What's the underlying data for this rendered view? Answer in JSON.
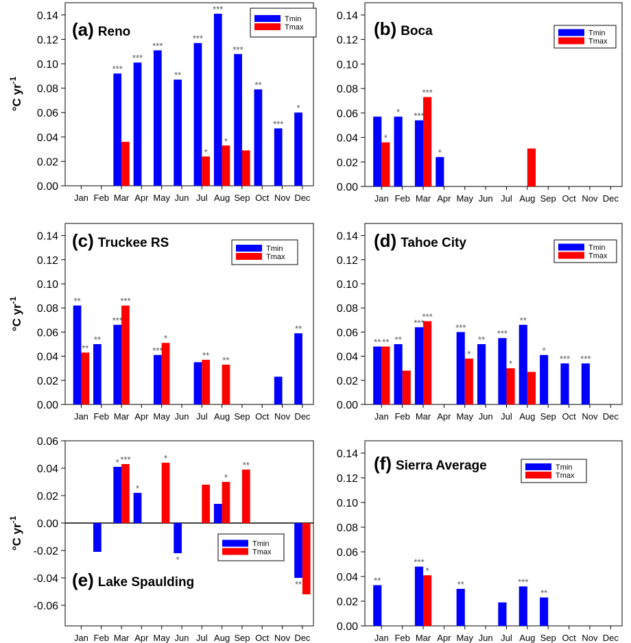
{
  "ylabel": {
    "prefix": "°C yr",
    "superscript": "-1"
  },
  "categories": [
    "Jan",
    "Feb",
    "Mar",
    "Apr",
    "May",
    "Jun",
    "Jul",
    "Aug",
    "Sep",
    "Oct",
    "Nov",
    "Dec"
  ],
  "legend": {
    "tmin": "Tmin",
    "tmax": "Tmax"
  },
  "colors": {
    "tmin": "#0000ff",
    "tmax": "#ff0000"
  },
  "chart_data": [
    {
      "type": "bar",
      "letter": "(a)",
      "name": "Reno",
      "ylim": [
        0,
        0.15
      ],
      "yticks": [
        "0.00",
        "0.02",
        "0.04",
        "0.06",
        "0.08",
        "0.10",
        "0.12",
        "0.14"
      ],
      "legend_placement": "top-right",
      "series": [
        {
          "name": "Tmin",
          "values": [
            null,
            null,
            0.092,
            0.101,
            0.111,
            0.087,
            0.117,
            0.141,
            0.108,
            0.079,
            0.047,
            0.06
          ],
          "sig": [
            "",
            "",
            "***",
            "***",
            "***",
            "**",
            "***",
            "***",
            "***",
            "**",
            "***",
            "*"
          ]
        },
        {
          "name": "Tmax",
          "values": [
            null,
            null,
            0.036,
            null,
            null,
            null,
            0.024,
            0.033,
            0.029,
            null,
            null,
            null
          ],
          "sig": [
            "",
            "",
            "",
            "",
            "",
            "",
            "*",
            "*",
            "",
            "",
            "",
            ""
          ]
        }
      ]
    },
    {
      "type": "bar",
      "letter": "(b)",
      "name": "Boca",
      "ylim": [
        0,
        0.15
      ],
      "yticks": [
        "0.00",
        "0.02",
        "0.04",
        "0.06",
        "0.08",
        "0.10",
        "0.12",
        "0.14"
      ],
      "legend_placement": "top-right",
      "series": [
        {
          "name": "Tmin",
          "values": [
            0.057,
            0.057,
            0.054,
            0.024,
            null,
            null,
            null,
            null,
            null,
            null,
            null,
            null
          ],
          "sig": [
            "",
            "*",
            "***",
            "*",
            "",
            "",
            "",
            "",
            "",
            "",
            "",
            ""
          ]
        },
        {
          "name": "Tmax",
          "values": [
            0.036,
            null,
            0.073,
            null,
            null,
            null,
            null,
            0.031,
            null,
            null,
            null,
            null
          ],
          "sig": [
            "*",
            "",
            "***",
            "",
            "",
            "",
            "",
            "",
            "",
            "",
            "",
            ""
          ]
        }
      ]
    },
    {
      "type": "bar",
      "letter": "(c)",
      "name": "Truckee RS",
      "ylim": [
        0,
        0.15
      ],
      "yticks": [
        "0.00",
        "0.02",
        "0.04",
        "0.06",
        "0.08",
        "0.10",
        "0.12",
        "0.14"
      ],
      "legend_placement": "top-right",
      "series": [
        {
          "name": "Tmin",
          "values": [
            0.082,
            0.05,
            0.066,
            null,
            0.041,
            null,
            0.035,
            null,
            null,
            null,
            0.023,
            0.059
          ],
          "sig": [
            "**",
            "**",
            "***",
            "",
            "***",
            "",
            "",
            "",
            "",
            "",
            "",
            "**"
          ]
        },
        {
          "name": "Tmax",
          "values": [
            0.043,
            null,
            0.082,
            null,
            0.051,
            null,
            0.037,
            0.033,
            null,
            null,
            null,
            null
          ],
          "sig": [
            "**",
            "",
            "***",
            "",
            "*",
            "",
            "**",
            "**",
            "",
            "",
            "",
            ""
          ]
        }
      ]
    },
    {
      "type": "bar",
      "letter": "(d)",
      "name": "Tahoe City",
      "ylim": [
        0,
        0.15
      ],
      "yticks": [
        "0.00",
        "0.02",
        "0.04",
        "0.06",
        "0.08",
        "0.10",
        "0.12",
        "0.14"
      ],
      "legend_placement": "top-right",
      "series": [
        {
          "name": "Tmin",
          "values": [
            0.048,
            0.05,
            0.064,
            null,
            0.06,
            0.05,
            0.055,
            0.066,
            0.041,
            0.034,
            0.034,
            null
          ],
          "sig": [
            "**",
            "**",
            "***",
            "",
            "***",
            "**",
            "***",
            "**",
            "*",
            "***",
            "***",
            ""
          ]
        },
        {
          "name": "Tmax",
          "values": [
            0.048,
            0.028,
            0.069,
            null,
            0.038,
            null,
            0.03,
            0.027,
            null,
            null,
            null,
            null
          ],
          "sig": [
            "**",
            "",
            "***",
            "",
            "*",
            "",
            "*",
            "",
            "",
            "",
            "",
            ""
          ]
        }
      ]
    },
    {
      "type": "bar",
      "letter": "(e)",
      "name": "Lake Spaulding",
      "ylim": [
        -0.075,
        0.06
      ],
      "yticks": [
        "-0.06",
        "-0.04",
        "-0.02",
        "0.00",
        "0.02",
        "0.04",
        "0.06"
      ],
      "legend_placement": "center-right",
      "series": [
        {
          "name": "Tmin",
          "values": [
            null,
            -0.021,
            0.041,
            0.022,
            null,
            -0.022,
            null,
            0.014,
            null,
            null,
            null,
            -0.04
          ],
          "sig": [
            "",
            "",
            "*",
            "*",
            "",
            "*",
            "",
            "",
            "",
            "",
            "",
            "**"
          ]
        },
        {
          "name": "Tmax",
          "values": [
            null,
            null,
            0.043,
            null,
            0.044,
            null,
            0.028,
            0.03,
            0.039,
            null,
            null,
            -0.052
          ],
          "sig": [
            "",
            "",
            "***",
            "",
            "*",
            "",
            "",
            "*",
            "**",
            "",
            "",
            ""
          ]
        }
      ]
    },
    {
      "type": "bar",
      "letter": "(f)",
      "name": "Sierra Average",
      "ylim": [
        0,
        0.15
      ],
      "yticks": [
        "0.00",
        "0.02",
        "0.04",
        "0.06",
        "0.08",
        "0.10",
        "0.12",
        "0.14"
      ],
      "legend_placement": "top-right",
      "series": [
        {
          "name": "Tmin",
          "values": [
            0.033,
            null,
            0.048,
            null,
            0.03,
            null,
            0.019,
            0.032,
            0.023,
            null,
            null,
            null
          ],
          "sig": [
            "**",
            "",
            "***",
            "",
            "**",
            "",
            "",
            "***",
            "**",
            "",
            "",
            ""
          ]
        },
        {
          "name": "Tmax",
          "values": [
            null,
            null,
            0.041,
            null,
            null,
            null,
            null,
            null,
            null,
            null,
            null,
            null
          ],
          "sig": [
            "",
            "",
            "*",
            "",
            "",
            "",
            "",
            "",
            "",
            "",
            "",
            ""
          ]
        }
      ]
    }
  ]
}
